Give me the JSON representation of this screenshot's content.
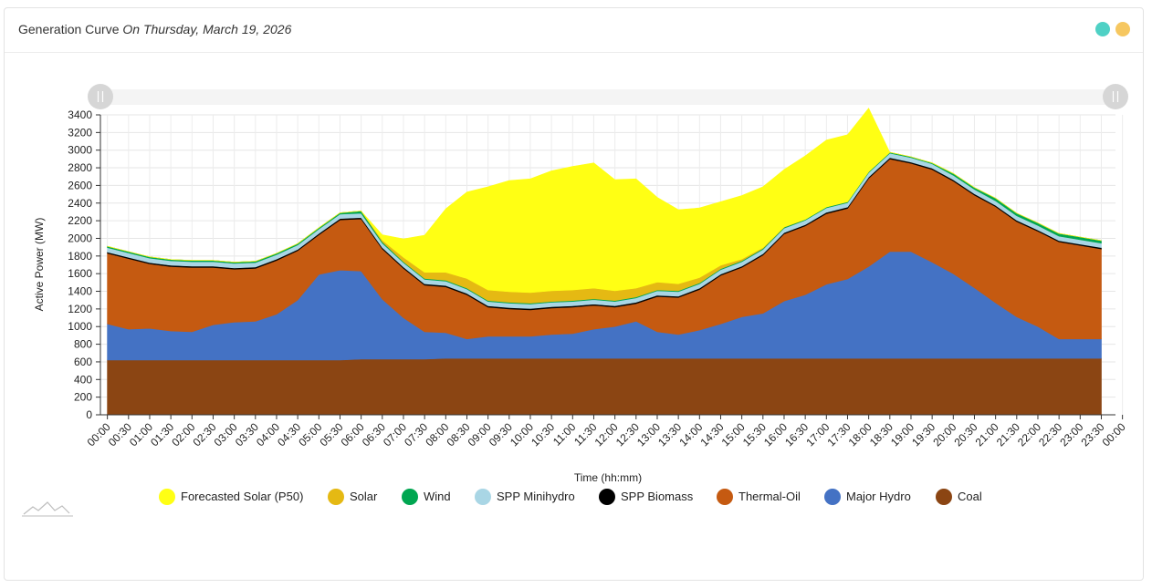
{
  "header": {
    "title": "Generation Curve",
    "date": "On Thursday, March 19, 2026",
    "dot_colors": [
      "#4fd1c5",
      "#f6c760"
    ]
  },
  "chart_data": {
    "type": "area",
    "stacked": true,
    "xlabel": "Time (hh:mm)",
    "ylabel": "Active Power (MW)",
    "ylim": [
      0,
      3400
    ],
    "yticks": [
      0,
      200,
      400,
      600,
      800,
      1000,
      1200,
      1400,
      1600,
      1800,
      2000,
      2200,
      2400,
      2600,
      2800,
      3000,
      3200,
      3400
    ],
    "x_tick_labels": [
      "00:00",
      "00:30",
      "01:00",
      "01:30",
      "02:00",
      "02:30",
      "03:00",
      "03:30",
      "04:00",
      "04:30",
      "05:00",
      "05:30",
      "06:00",
      "06:30",
      "07:00",
      "07:30",
      "08:00",
      "08:30",
      "09:00",
      "09:30",
      "10:00",
      "10:30",
      "11:00",
      "11:30",
      "12:00",
      "12:30",
      "13:00",
      "13:30",
      "14:00",
      "14:30",
      "15:00",
      "15:30",
      "16:00",
      "16:30",
      "17:00",
      "17:30",
      "18:00",
      "18:30",
      "19:00",
      "19:30",
      "20:00",
      "20:30",
      "21:00",
      "21:30",
      "22:00",
      "22:30",
      "23:00",
      "23:30",
      "00:00"
    ],
    "x": [
      "00:00",
      "00:30",
      "01:00",
      "01:30",
      "02:00",
      "02:30",
      "03:00",
      "03:30",
      "04:00",
      "04:30",
      "05:00",
      "05:30",
      "06:00",
      "06:30",
      "07:00",
      "07:30",
      "08:00",
      "08:30",
      "09:00",
      "09:30",
      "10:00",
      "10:30",
      "11:00",
      "11:30",
      "12:00",
      "12:30",
      "13:00",
      "13:30",
      "14:00",
      "14:30",
      "15:00",
      "15:30",
      "16:00",
      "16:30",
      "17:00",
      "17:30",
      "18:00",
      "18:30",
      "19:00",
      "19:30",
      "20:00",
      "20:30",
      "21:00",
      "21:30",
      "22:00",
      "22:30",
      "23:00",
      "23:30"
    ],
    "grid": true,
    "legend_position": "bottom-center",
    "series": [
      {
        "name": "Coal",
        "color": "#8b4513",
        "values": [
          620,
          620,
          620,
          620,
          620,
          620,
          620,
          620,
          620,
          620,
          620,
          620,
          630,
          630,
          630,
          630,
          640,
          640,
          640,
          640,
          640,
          640,
          640,
          640,
          640,
          640,
          640,
          640,
          640,
          640,
          640,
          640,
          640,
          640,
          640,
          640,
          640,
          640,
          640,
          640,
          640,
          640,
          640,
          640,
          640,
          640,
          640,
          640
        ]
      },
      {
        "name": "Major Hydro",
        "color": "#4472c4",
        "values": [
          410,
          350,
          360,
          330,
          320,
          400,
          430,
          440,
          520,
          680,
          970,
          1020,
          1000,
          680,
          470,
          310,
          290,
          220,
          250,
          250,
          250,
          270,
          280,
          330,
          360,
          420,
          300,
          270,
          320,
          390,
          470,
          510,
          650,
          720,
          840,
          900,
          1040,
          1210,
          1210,
          1090,
          960,
          800,
          630,
          470,
          360,
          220,
          220,
          220
        ]
      },
      {
        "name": "Thermal-Oil",
        "color": "#c55a11",
        "values": [
          800,
          800,
          730,
          730,
          730,
          650,
          600,
          600,
          610,
          560,
          450,
          570,
          590,
          570,
          560,
          530,
          520,
          500,
          330,
          310,
          300,
          300,
          300,
          270,
          220,
          200,
          400,
          420,
          460,
          550,
          560,
          660,
          760,
          780,
          800,
          800,
          1000,
          1050,
          1000,
          1050,
          1050,
          1050,
          1090,
          1080,
          1080,
          1100,
          1060,
          1020
        ]
      },
      {
        "name": "SPP Biomass",
        "color": "#000000",
        "values": [
          15,
          15,
          15,
          15,
          15,
          15,
          15,
          15,
          15,
          15,
          15,
          15,
          15,
          15,
          15,
          15,
          15,
          15,
          15,
          15,
          15,
          15,
          15,
          15,
          15,
          15,
          15,
          15,
          15,
          15,
          15,
          15,
          15,
          15,
          15,
          15,
          15,
          15,
          15,
          15,
          15,
          15,
          15,
          15,
          15,
          15,
          15,
          15
        ]
      },
      {
        "name": "SPP Minihydro",
        "color": "#a9d6e5",
        "values": [
          50,
          50,
          50,
          50,
          50,
          50,
          50,
          50,
          50,
          50,
          50,
          50,
          50,
          50,
          50,
          50,
          50,
          50,
          50,
          50,
          50,
          50,
          50,
          50,
          50,
          50,
          50,
          50,
          50,
          50,
          50,
          50,
          50,
          50,
          50,
          50,
          50,
          50,
          50,
          50,
          50,
          50,
          50,
          50,
          50,
          50,
          50,
          50
        ]
      },
      {
        "name": "Wind",
        "color": "#00a651",
        "values": [
          15,
          15,
          15,
          15,
          15,
          15,
          15,
          15,
          15,
          15,
          15,
          15,
          25,
          15,
          10,
          10,
          10,
          10,
          10,
          10,
          10,
          10,
          10,
          10,
          10,
          10,
          10,
          10,
          10,
          10,
          10,
          10,
          10,
          10,
          10,
          10,
          10,
          10,
          10,
          10,
          20,
          20,
          30,
          30,
          30,
          30,
          30,
          30
        ]
      },
      {
        "name": "Solar",
        "color": "#e5b913",
        "values": [
          0,
          0,
          0,
          0,
          0,
          0,
          0,
          0,
          0,
          0,
          0,
          0,
          0,
          20,
          50,
          70,
          90,
          110,
          120,
          120,
          120,
          120,
          120,
          120,
          110,
          100,
          90,
          80,
          60,
          40,
          20,
          10,
          5,
          0,
          0,
          0,
          0,
          0,
          0,
          0,
          0,
          0,
          0,
          0,
          0,
          0,
          0,
          0
        ]
      },
      {
        "name": "Forecasted Solar (P50)",
        "color": "#ffff14",
        "values": [
          0,
          0,
          0,
          0,
          0,
          0,
          0,
          0,
          0,
          0,
          0,
          0,
          0,
          60,
          210,
          420,
          720,
          980,
          1170,
          1260,
          1290,
          1360,
          1400,
          1420,
          1260,
          1240,
          960,
          840,
          790,
          720,
          720,
          690,
          650,
          720,
          760,
          760,
          720,
          0,
          0,
          0,
          0,
          0,
          0,
          0,
          0,
          0,
          0,
          0
        ]
      }
    ]
  }
}
